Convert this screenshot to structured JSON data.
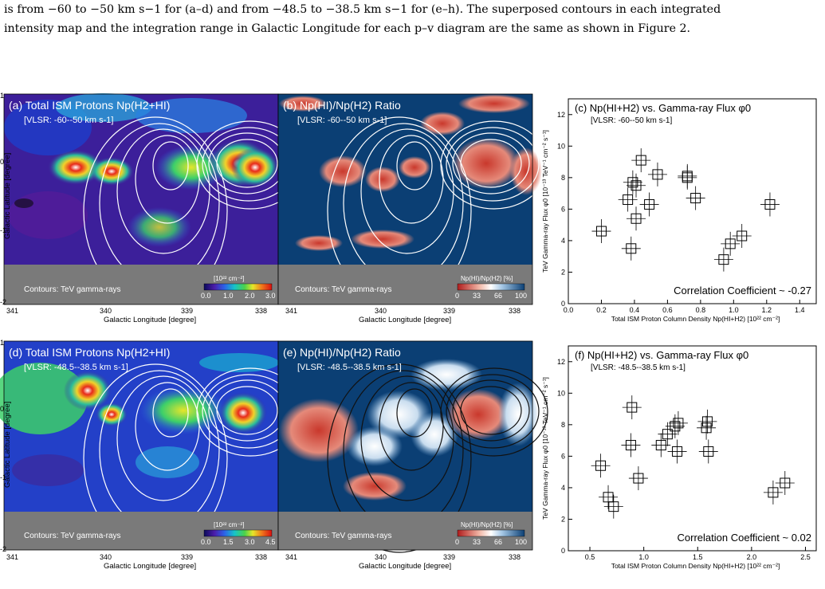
{
  "caption": {
    "line1": "is from −60 to −50 km s−1 for (a–d) and from −48.5 to −38.5 km s−1 for (e–h). The superposed contours in each integrated",
    "line2": "intensity map and the integration range in Galactic Longitude for each p–v diagram are the same as shown in Figure 2."
  },
  "maps": {
    "row1": {
      "a_title": "(a) Total ISM Protons Np(H2+HI)",
      "a_vlsr": "[VLSR: -60--50 km s-1]",
      "a_cbar_unit": "[10²² cm⁻²]",
      "a_cbar_ticks": [
        "0.0",
        "1.0",
        "2.0",
        "3.0"
      ],
      "b_title": "(b) Np(HI)/Np(H2) Ratio",
      "b_vlsr": "[VLSR: -60--50 km s-1]",
      "b_cbar_unit": "Np(HI)/Np(H2) [%]",
      "b_cbar_ticks": [
        "0",
        "33",
        "66",
        "100"
      ]
    },
    "row2": {
      "d_title": "(d) Total ISM Protons Np(H2+HI)",
      "d_vlsr": "[VLSR: -48.5--38.5 km s-1]",
      "d_cbar_unit": "[10²² cm⁻²]",
      "d_cbar_ticks": [
        "0.0",
        "1.5",
        "3.0",
        "4.5"
      ],
      "e_title": "(e) Np(HI)/Np(H2) Ratio",
      "e_vlsr": "[VLSR: -48.5--38.5 km s-1]",
      "e_cbar_unit": "Np(HI)/Np(H2) [%]",
      "e_cbar_ticks": [
        "0",
        "33",
        "66",
        "100"
      ]
    },
    "contours_label": "Contours: TeV gamma-rays",
    "ylabel": "Galactic Latitude [degree]",
    "xlabel": "Galactic Longitude [degree]",
    "yticks": [
      "1",
      "0",
      "-1",
      "-2"
    ],
    "xticks": [
      "341",
      "340",
      "339",
      "338"
    ],
    "colors": {
      "mask": "#7a7a7a",
      "ratio_high": "#0b3f74",
      "ratio_low": "#d84a3a"
    }
  },
  "chart_data": [
    {
      "type": "scatter",
      "title": "(c) Np(HI+H2) vs. Gamma-ray Flux φ0",
      "subtitle": "[VLSR: -60--50 km s-1]",
      "xlabel": "Total ISM Proton Column Density Np(HI+H2) [10²² cm⁻²]",
      "ylabel": "TeV Gamma-ray Flux φ0 [10⁻¹³ TeV⁻¹ cm⁻² s⁻¹]",
      "xlim": [
        0.0,
        1.5
      ],
      "ylim": [
        0,
        13
      ],
      "xticks": [
        0.0,
        0.2,
        0.4,
        0.6,
        0.8,
        1.0,
        1.2,
        1.4
      ],
      "yticks": [
        0,
        2,
        4,
        6,
        8,
        10,
        12
      ],
      "annotation": "Correlation Coefficient ~ -0.27",
      "points": [
        {
          "x": 0.2,
          "y": 4.6
        },
        {
          "x": 0.36,
          "y": 6.6
        },
        {
          "x": 0.38,
          "y": 3.5
        },
        {
          "x": 0.39,
          "y": 7.7
        },
        {
          "x": 0.41,
          "y": 7.5
        },
        {
          "x": 0.41,
          "y": 5.4
        },
        {
          "x": 0.44,
          "y": 9.1
        },
        {
          "x": 0.49,
          "y": 6.3
        },
        {
          "x": 0.54,
          "y": 8.2
        },
        {
          "x": 0.72,
          "y": 8.1
        },
        {
          "x": 0.72,
          "y": 8.0
        },
        {
          "x": 0.77,
          "y": 6.7
        },
        {
          "x": 0.94,
          "y": 2.8
        },
        {
          "x": 0.98,
          "y": 3.8
        },
        {
          "x": 1.05,
          "y": 4.3
        },
        {
          "x": 1.22,
          "y": 6.3
        }
      ]
    },
    {
      "type": "scatter",
      "title": "(f) Np(HI+H2) vs. Gamma-ray Flux φ0",
      "subtitle": "[VLSR: -48.5--38.5 km s-1]",
      "xlabel": "Total ISM Proton Column Density Np(HI+H2) [10²² cm⁻²]",
      "ylabel": "TeV Gamma-ray Flux φ0 [10⁻¹³ TeV⁻¹ cm⁻² s⁻¹]",
      "xlim": [
        0.3,
        2.6
      ],
      "ylim": [
        0,
        13
      ],
      "xticks": [
        0.5,
        1.0,
        1.5,
        2.0,
        2.5
      ],
      "yticks": [
        0,
        2,
        4,
        6,
        8,
        10,
        12
      ],
      "annotation": "Correlation Coefficient ~ 0.02",
      "points": [
        {
          "x": 0.6,
          "y": 5.4
        },
        {
          "x": 0.67,
          "y": 3.4
        },
        {
          "x": 0.72,
          "y": 2.8
        },
        {
          "x": 0.88,
          "y": 6.7
        },
        {
          "x": 0.89,
          "y": 9.1
        },
        {
          "x": 0.95,
          "y": 4.6
        },
        {
          "x": 1.16,
          "y": 6.7
        },
        {
          "x": 1.22,
          "y": 7.4
        },
        {
          "x": 1.29,
          "y": 7.9
        },
        {
          "x": 1.31,
          "y": 6.3
        },
        {
          "x": 1.32,
          "y": 8.1
        },
        {
          "x": 1.58,
          "y": 7.8
        },
        {
          "x": 1.59,
          "y": 8.2
        },
        {
          "x": 1.6,
          "y": 6.3
        },
        {
          "x": 2.2,
          "y": 3.7
        },
        {
          "x": 2.31,
          "y": 4.3
        }
      ]
    }
  ]
}
